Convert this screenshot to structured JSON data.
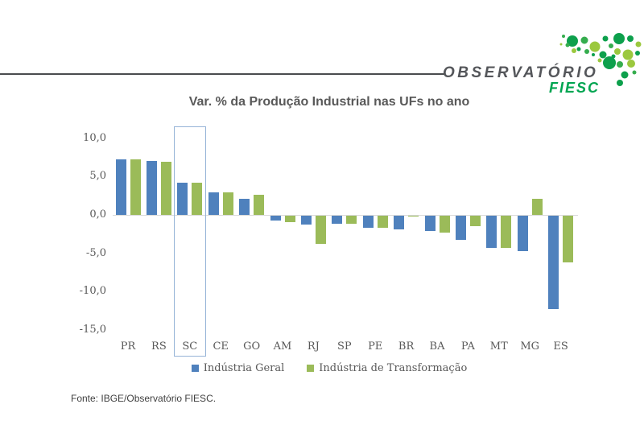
{
  "logo": {
    "name": "OBSERVATÓRIO",
    "sub": "FIESC",
    "text_color": "#54565a",
    "accent_green": "#00a551",
    "dot_colors": {
      "dark": "#0da04c",
      "mid": "#35ad4e",
      "light": "#9bc83e"
    }
  },
  "title": "Var. % da Produção Industrial nas UFs no ano",
  "chart_data": {
    "type": "bar",
    "title": "Var. % da Produção Industrial nas UFs no ano",
    "categories": [
      "PR",
      "RS",
      "SC",
      "CE",
      "GO",
      "AM",
      "RJ",
      "SP",
      "PE",
      "BR",
      "BA",
      "PA",
      "MT",
      "MG",
      "ES"
    ],
    "series": [
      {
        "name": "Indústria Geral",
        "color": "#4F81BD",
        "values": [
          7.2,
          7.0,
          4.2,
          2.9,
          2.1,
          -0.6,
          -1.2,
          -1.1,
          -1.6,
          -1.8,
          -2.0,
          -3.1,
          -4.2,
          -4.6,
          -12.2
        ]
      },
      {
        "name": "Indústria de Transformação",
        "color": "#9BBB59",
        "values": [
          7.2,
          6.9,
          4.2,
          2.9,
          2.6,
          -0.8,
          -3.7,
          -1.0,
          -1.6,
          -0.1,
          -2.2,
          -1.4,
          -4.2,
          2.1,
          -6.1
        ]
      }
    ],
    "xlabel": "",
    "ylabel": "",
    "ylim": [
      -15.0,
      10.0
    ],
    "ytick_labels": [
      "10,0",
      "5,0",
      "0,0",
      "-5,0",
      "-10,0",
      "-15,0"
    ],
    "ytick_values": [
      10,
      5,
      0,
      -5,
      -10,
      -15
    ],
    "grid": false,
    "legend_position": "bottom",
    "highlight_category": "SC",
    "highlight_color": "#95b3d7",
    "zero_line_color": "#d9d9d9"
  },
  "footer": {
    "source": "Fonte: IBGE/Observatório FIESC."
  }
}
